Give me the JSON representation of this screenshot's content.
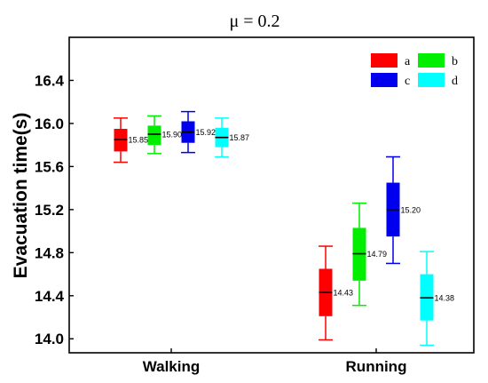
{
  "chart_data": {
    "type": "box",
    "title": "μ = 0.2",
    "ylabel": "Evacuation time(s)",
    "xlabel": "",
    "categories": [
      "Walking",
      "Running"
    ],
    "ylim": [
      13.87,
      16.8
    ],
    "yticks": [
      "14.0",
      "14.4",
      "14.8",
      "15.2",
      "15.6",
      "16.0",
      "16.4"
    ],
    "grid": false,
    "legend": {
      "position": "top-right",
      "entries": [
        {
          "name": "a",
          "color": "#ff0000"
        },
        {
          "name": "b",
          "color": "#00ee00"
        },
        {
          "name": "c",
          "color": "#0000ee"
        },
        {
          "name": "d",
          "color": "#00ffff"
        }
      ]
    },
    "series": [
      {
        "name": "a",
        "color": "#ff0000",
        "boxes": [
          {
            "category": "Walking",
            "min": 15.64,
            "q1": 15.74,
            "median": 15.85,
            "q3": 15.95,
            "max": 16.05,
            "label": "15.85"
          },
          {
            "category": "Running",
            "min": 13.99,
            "q1": 14.21,
            "median": 14.43,
            "q3": 14.65,
            "max": 14.86,
            "label": "14.43"
          }
        ]
      },
      {
        "name": "b",
        "color": "#00ee00",
        "boxes": [
          {
            "category": "Walking",
            "min": 15.72,
            "q1": 15.8,
            "median": 15.9,
            "q3": 15.98,
            "max": 16.07,
            "label": "15.90"
          },
          {
            "category": "Running",
            "min": 14.31,
            "q1": 14.54,
            "median": 14.79,
            "q3": 15.03,
            "max": 15.26,
            "label": "14.79"
          }
        ]
      },
      {
        "name": "c",
        "color": "#0000ee",
        "boxes": [
          {
            "category": "Walking",
            "min": 15.73,
            "q1": 15.82,
            "median": 15.92,
            "q3": 16.02,
            "max": 16.11,
            "label": "15.92"
          },
          {
            "category": "Running",
            "min": 14.7,
            "q1": 14.95,
            "median": 15.2,
            "q3": 15.45,
            "max": 15.69,
            "label": "15.20"
          }
        ]
      },
      {
        "name": "d",
        "color": "#00ffff",
        "boxes": [
          {
            "category": "Walking",
            "min": 15.69,
            "q1": 15.78,
            "median": 15.87,
            "q3": 15.96,
            "max": 16.05,
            "label": "15.87"
          },
          {
            "category": "Running",
            "min": 13.94,
            "q1": 14.17,
            "median": 14.38,
            "q3": 14.6,
            "max": 14.81,
            "label": "14.38"
          }
        ]
      }
    ]
  }
}
